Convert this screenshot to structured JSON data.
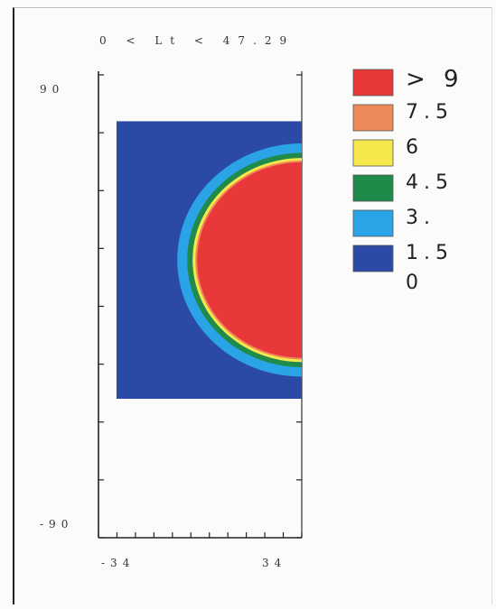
{
  "figure": {
    "caption": "0 < Lt < 47.29",
    "y_tick_top": "90",
    "y_tick_bottom": "-90",
    "x_tick_left": "-34",
    "x_tick_right": "34"
  },
  "legend": {
    "entries": [
      {
        "label": "> 9",
        "color": "#e8383a"
      },
      {
        "label": "7.5",
        "color": "#ee8a5a"
      },
      {
        "label": "6",
        "color": "#f6e84a"
      },
      {
        "label": "4.5",
        "color": "#1f8a4a"
      },
      {
        "label": "3.",
        "color": "#2aa4e6"
      },
      {
        "label": "1.5",
        "color": "#2a4aa6"
      }
    ],
    "bottom_label": "0"
  },
  "chart_data": {
    "type": "heatmap",
    "title": "0 < Lt < 47.29",
    "xlabel": "",
    "ylabel": "",
    "xlim": [
      -34,
      34
    ],
    "ylim": [
      -90,
      90
    ],
    "x_ticks": [
      "-34",
      "34"
    ],
    "y_ticks": [
      "90",
      "-90"
    ],
    "levels": [
      0,
      1.5,
      3,
      4.5,
      6,
      7.5,
      9
    ],
    "level_labels": [
      "0",
      "1.5",
      "3.",
      "4.5",
      "6",
      "7.5",
      "> 9"
    ],
    "level_colors": [
      "#2a4aa6",
      "#2aa4e6",
      "#1f8a4a",
      "#f6e84a",
      "#ee8a5a",
      "#e8383a"
    ],
    "data_region": {
      "x": [
        -28,
        34
      ],
      "y": [
        -36,
        72
      ]
    },
    "feature": {
      "description_units": "data",
      "center_x": 34,
      "center_y": 18,
      "core_radius_x": 35,
      "core_radius_y": 38,
      "level": "> 9"
    },
    "grid": false,
    "legend_position": "right"
  }
}
